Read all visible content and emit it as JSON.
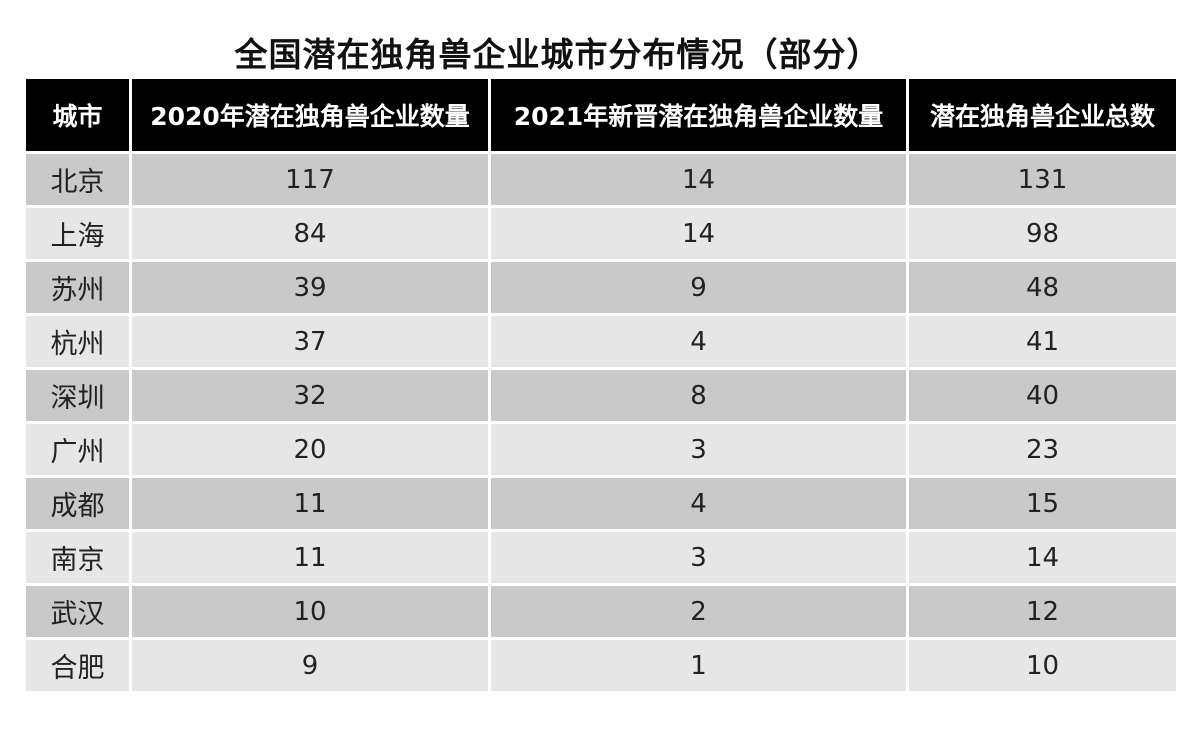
{
  "title": "全国潜在独角兽企业城市分布情况（部分）",
  "chart_data": {
    "type": "table",
    "title": "全国潜在独角兽企业城市分布情况（部分）",
    "columns": [
      "城市",
      "2020年潜在独角兽企业数量",
      "2021年新晋潜在独角兽企业数量",
      "潜在独角兽企业总数"
    ],
    "rows": [
      [
        "北京",
        "117",
        "14",
        "131"
      ],
      [
        "上海",
        "84",
        "14",
        "98"
      ],
      [
        "苏州",
        "39",
        "9",
        "48"
      ],
      [
        "杭州",
        "37",
        "4",
        "41"
      ],
      [
        "深圳",
        "32",
        "8",
        "40"
      ],
      [
        "广州",
        "20",
        "3",
        "23"
      ],
      [
        "成都",
        "11",
        "4",
        "15"
      ],
      [
        "南京",
        "11",
        "3",
        "14"
      ],
      [
        "武汉",
        "10",
        "2",
        "12"
      ],
      [
        "合肥",
        "9",
        "1",
        "10"
      ]
    ],
    "colors": {
      "header_bg": "#000000",
      "header_text": "#ffffff",
      "row_odd": "#c9c9c9",
      "row_even": "#e6e6e6"
    }
  }
}
